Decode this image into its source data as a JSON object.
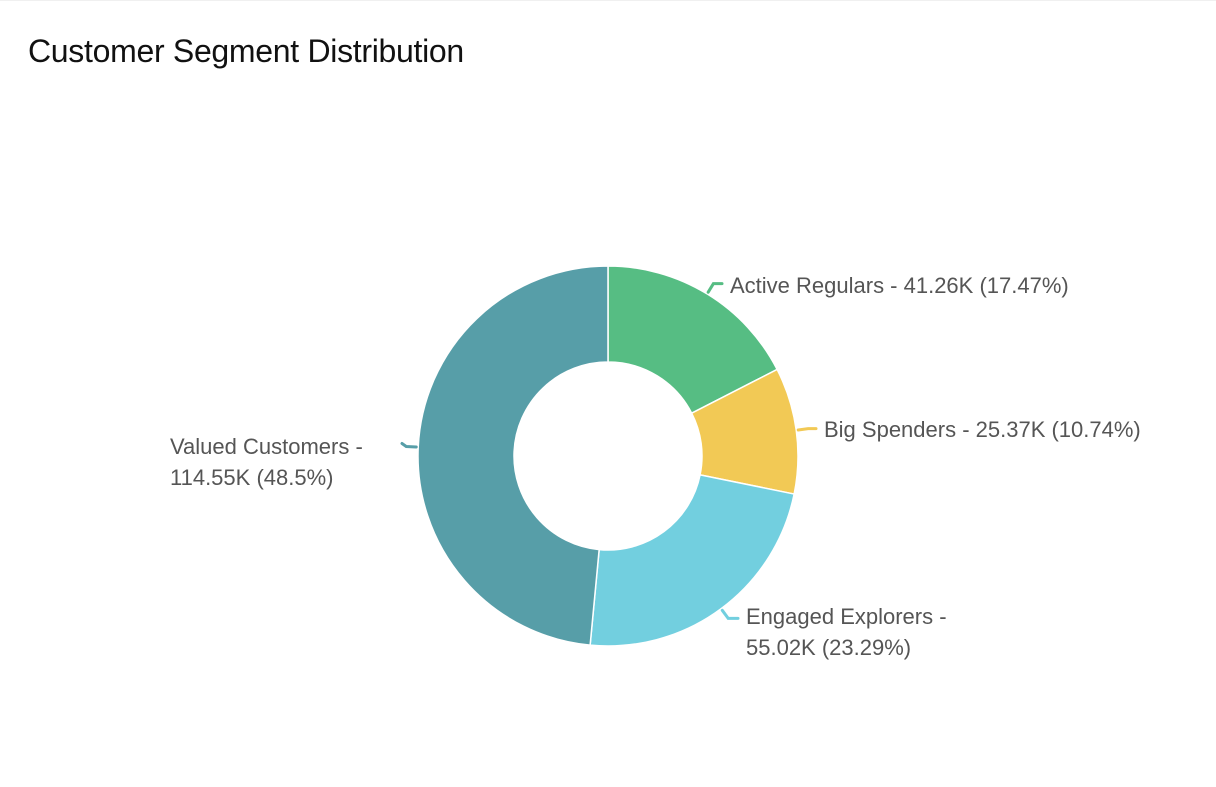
{
  "title": "Customer Segment Distribution",
  "chart_data": {
    "type": "pie",
    "variant": "donut",
    "title": "Customer Segment Distribution",
    "slices": [
      {
        "name": "Active Regulars",
        "value_label": "41.26K",
        "value": 41260,
        "percent": 17.47,
        "color": "#56bd83",
        "label_lines": [
          "Active Regulars - 41.26K (17.47%)"
        ]
      },
      {
        "name": "Big Spenders",
        "value_label": "25.37K",
        "value": 25370,
        "percent": 10.74,
        "color": "#f2c955",
        "label_lines": [
          "Big Spenders - 25.37K (10.74%)"
        ]
      },
      {
        "name": "Engaged Explorers",
        "value_label": "55.02K",
        "value": 55020,
        "percent": 23.29,
        "color": "#72cfdf",
        "label_lines": [
          "Engaged Explorers -",
          "55.02K (23.29%)"
        ]
      },
      {
        "name": "Valued Customers",
        "value_label": "114.55K",
        "value": 114550,
        "percent": 48.5,
        "color": "#579ea8",
        "label_lines": [
          "Valued Customers -",
          "114.55K (48.5%)"
        ]
      }
    ]
  }
}
